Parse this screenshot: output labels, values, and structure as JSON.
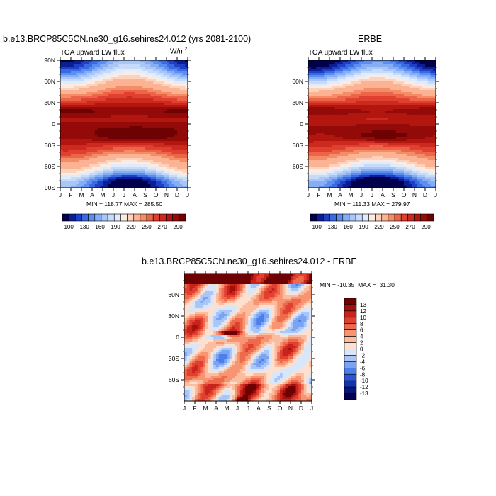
{
  "chart_data": [
    {
      "type": "heatmap",
      "title": "b.e13.BRCP85C5CN.ne30_g16.sehires24.012 (yrs 2081-2100)",
      "subtitle_left": "TOA upward LW flux",
      "units_label": "W/m",
      "units_superscript": "2",
      "xlabel": "",
      "ylabel": "",
      "x_tick_labels": [
        "J",
        "F",
        "M",
        "A",
        "M",
        "J",
        "J",
        "A",
        "S",
        "O",
        "N",
        "D",
        "J"
      ],
      "y_tick_labels": [
        "90N",
        "60N",
        "30N",
        "0",
        "30S",
        "60S",
        "90S"
      ],
      "y_tick_values": [
        90,
        60,
        30,
        0,
        -30,
        -60,
        -90
      ],
      "xlim": [
        0,
        12
      ],
      "ylim": [
        -90,
        90
      ],
      "stats_text": "MIN = 118.77  MAX = 285.50",
      "min": 118.77,
      "max": 285.5,
      "colorbar": {
        "orientation": "horizontal",
        "labels": [
          "100",
          "130",
          "160",
          "190",
          "220",
          "250",
          "270",
          "290"
        ],
        "levels": [
          100,
          110,
          120,
          130,
          140,
          150,
          160,
          170,
          180,
          190,
          200,
          220,
          230,
          240,
          250,
          260,
          270,
          280,
          290
        ],
        "colors": [
          "#00004d",
          "#0a1e96",
          "#1f3fc4",
          "#3b6ae0",
          "#5b8ef0",
          "#86aef5",
          "#a9c6f7",
          "#c6daf9",
          "#e0ebfb",
          "#fbece3",
          "#fcd2bc",
          "#fbb393",
          "#f58c68",
          "#ec6548",
          "#e04030",
          "#cc2a1e",
          "#b3160f",
          "#940a08",
          "#6e0202"
        ]
      }
    },
    {
      "type": "heatmap",
      "title": "ERBE",
      "subtitle_left": "TOA upward LW flux",
      "xlabel": "",
      "ylabel": "",
      "x_tick_labels": [
        "J",
        "F",
        "M",
        "A",
        "M",
        "J",
        "J",
        "A",
        "S",
        "O",
        "N",
        "D",
        "J"
      ],
      "y_tick_labels": [
        "60N",
        "30N",
        "0",
        "30S",
        "60S"
      ],
      "y_tick_values": [
        60,
        30,
        0,
        -30,
        -60
      ],
      "xlim": [
        0,
        12
      ],
      "ylim": [
        -90,
        90
      ],
      "stats_text": "MIN = 111.33  MAX = 279.97",
      "min": 111.33,
      "max": 279.97,
      "colorbar": {
        "orientation": "horizontal",
        "labels": [
          "100",
          "130",
          "160",
          "190",
          "220",
          "250",
          "270",
          "290"
        ]
      }
    },
    {
      "type": "heatmap",
      "title": "b.e13.BRCP85C5CN.ne30_g16.sehires24.012 - ERBE",
      "xlabel": "",
      "ylabel": "",
      "x_tick_labels": [
        "J",
        "F",
        "M",
        "A",
        "M",
        "J",
        "J",
        "A",
        "S",
        "O",
        "N",
        "D",
        "J"
      ],
      "y_tick_labels": [
        "60N",
        "30N",
        "0",
        "30S",
        "60S"
      ],
      "y_tick_values": [
        60,
        30,
        0,
        -30,
        -60
      ],
      "xlim": [
        0,
        12
      ],
      "ylim": [
        -90,
        90
      ],
      "stats_text": "MIN = -10.35  MAX =  31.30",
      "min": -10.35,
      "max": 31.3,
      "colorbar": {
        "orientation": "vertical",
        "labels": [
          "13",
          "12",
          "10",
          "8",
          "6",
          "4",
          "2",
          "0",
          "-2",
          "-4",
          "-6",
          "-8",
          "-10",
          "-12",
          "-13"
        ],
        "colors": [
          "#6e0202",
          "#a50f0a",
          "#c8231a",
          "#e04030",
          "#ee6a4c",
          "#f79472",
          "#fbbc9f",
          "#fde0cf",
          "#d8e6fa",
          "#a9c6f7",
          "#7aa3f2",
          "#4d7fe8",
          "#2a55d6",
          "#1233b0",
          "#06157a",
          "#00004d"
        ]
      }
    }
  ]
}
